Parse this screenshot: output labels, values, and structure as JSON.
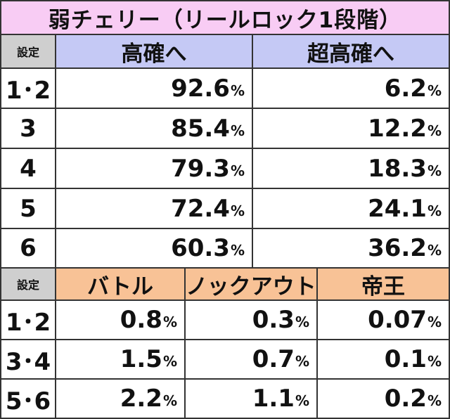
{
  "title": "弱チェリー（リールロック1段階）",
  "table1": {
    "setting_header": "設定",
    "col_headers": [
      "高確へ",
      "超高確へ"
    ],
    "rows": [
      {
        "label": "1･2",
        "values": [
          "92.6",
          "6.2"
        ]
      },
      {
        "label": "3",
        "values": [
          "85.4",
          "12.2"
        ]
      },
      {
        "label": "4",
        "values": [
          "79.3",
          "18.3"
        ]
      },
      {
        "label": "5",
        "values": [
          "72.4",
          "24.1"
        ]
      },
      {
        "label": "6",
        "values": [
          "60.3",
          "36.2"
        ]
      }
    ]
  },
  "table2": {
    "setting_header": "設定",
    "col_headers": [
      "バトル",
      "ノックアウト",
      "帝王"
    ],
    "rows": [
      {
        "label": "1･2",
        "values": [
          "0.8",
          "0.3",
          "0.07"
        ]
      },
      {
        "label": "3･4",
        "values": [
          "1.5",
          "0.7",
          "0.1"
        ]
      },
      {
        "label": "5･6",
        "values": [
          "2.2",
          "1.1",
          "0.2"
        ]
      }
    ]
  },
  "unit": "%",
  "colors": {
    "title_bg": "#f8ccf4",
    "header_blue": "#c5c9f5",
    "header_orange": "#f8c296",
    "setting_bg": "#cfcfcf",
    "border": "#333333"
  }
}
